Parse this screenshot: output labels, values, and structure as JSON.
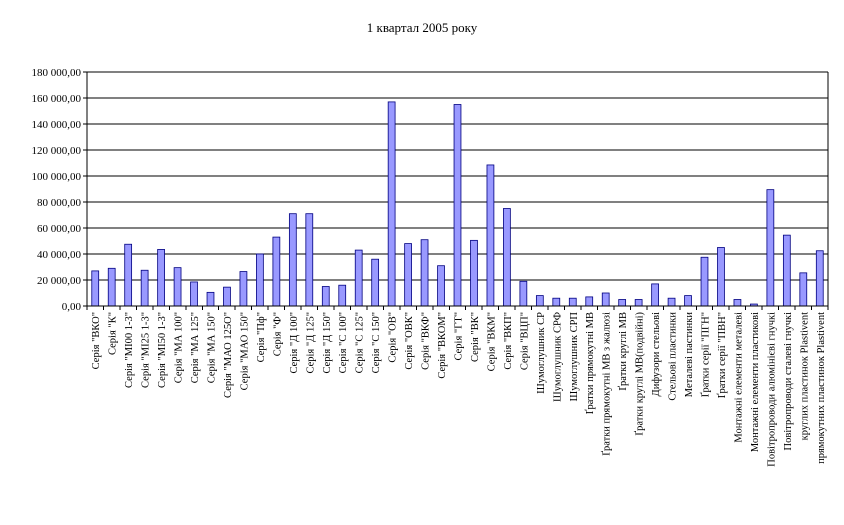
{
  "chart_data": {
    "type": "bar",
    "title": "1 квартал 2005 року",
    "xlabel": "",
    "ylabel": "",
    "ylim": [
      0,
      180000
    ],
    "yticks": [
      "0,00",
      "20 000,00",
      "40 000,00",
      "60 000,00",
      "80 000,00",
      "100 000,00",
      "120 000,00",
      "140 000,00",
      "160 000,00",
      "180 000,00"
    ],
    "grid": true,
    "legend": "none",
    "colors": {
      "bar_fill": "#9999ff",
      "bar_stroke": "#000080",
      "grid": "#000000",
      "plot_bg": "#ffffff"
    },
    "categories": [
      "Серія \"ВКО\"",
      "Серія \"К\"",
      "Серія \"МІ00 1-3\"",
      "Серія \"МІ25 1-3\"",
      "Серія \"МІ50 1-3\"",
      "Серія \"МА 100\"",
      "Серія \"МА 125\"",
      "Серія \"МА 150\"",
      "Серія \"МАО 125О\"",
      "Серія \"МАО 150\"",
      "Серія \"Пф\"",
      "Серія \"Ф\"",
      "Серія \"Д 100\"",
      "Серія \"Д 125\"",
      "Серія \"Д 150\"",
      "Серія \"С 100\"",
      "Серія \"С 125\"",
      "Серія \"С 150\"",
      "Серія \"ОВ\"",
      "Серія \"ОВК\"",
      "Серія \"ВКФ\"",
      "Серія \"ВКОМ\"",
      "Серія \"ГТ\"",
      "Серія \"ВК\"",
      "Серія \"ВКМ\"",
      "Серія \"ВКП\"",
      "Серія \"ВЦП\"",
      "Шумоглушник СР",
      "Шумоглушник СРФ",
      "Шумоглушник СРП",
      "Ґратки прямокутні МВ",
      "Ґратки прямокутні МВ з жалюзі",
      "Ґратки круглі МВ",
      "Ґратки круглі МВ(подвійні)",
      "Дифузори стельові",
      "Стельові пластинки",
      "Металеві пастинки",
      "Ґратки серії \"ПГН\"",
      "Ґратки серії \"ПВН\"",
      "Монтажні елементи металеві",
      "Монтажні елементи пластикові",
      "Повітропроводи алюмінієві гнучкі",
      "Повітропроводи сталеві гнучкі",
      "круглих пластинок Plastivent",
      "прямокутних пластинок Plastivent"
    ],
    "values": [
      27000,
      29000,
      47500,
      27500,
      43500,
      29500,
      18500,
      10500,
      14500,
      26500,
      40000,
      53000,
      71000,
      71000,
      15000,
      16000,
      43000,
      36000,
      157000,
      48000,
      51000,
      31000,
      155000,
      50500,
      108500,
      75000,
      19000,
      8000,
      6000,
      6000,
      7000,
      10000,
      5000,
      5000,
      17000,
      6000,
      8000,
      37500,
      45000,
      5000,
      1500,
      89500,
      54500,
      25500,
      42500
    ]
  }
}
